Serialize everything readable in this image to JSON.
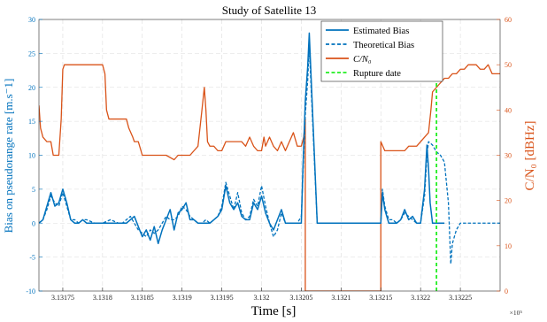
{
  "chart_data": {
    "type": "line",
    "title": "Study of Satellite 13",
    "xlabel": "Time [s]",
    "x_exponent_label": "×10⁵",
    "ylabel_left": "Bias on pseudorange rate [m.s⁻1]",
    "ylabel_right": "C/N₀ [dBHz]",
    "xlim": [
      3.13172,
      3.1323
    ],
    "ylim_left": [
      -10,
      30
    ],
    "ylim_right": [
      0,
      60
    ],
    "x_ticks": [
      3.13175,
      3.1318,
      3.13185,
      3.1319,
      3.13195,
      3.132,
      3.13205,
      3.1321,
      3.13215,
      3.1322,
      3.13225
    ],
    "x_tick_labels": [
      "3.13175",
      "3.1318",
      "3.13185",
      "3.1319",
      "3.13195",
      "3.132",
      "3.13205",
      "3.1321",
      "3.13215",
      "3.1322",
      "3.13225"
    ],
    "y_left_ticks": [
      -10,
      -5,
      0,
      5,
      10,
      15,
      20,
      25,
      30
    ],
    "y_left_tick_labels": [
      "-10",
      "-5",
      "0",
      "5",
      "10",
      "15",
      "20",
      "25",
      "30"
    ],
    "y_right_ticks": [
      0,
      10,
      20,
      30,
      40,
      50,
      60
    ],
    "y_right_tick_labels": [
      "0",
      "10",
      "20",
      "30",
      "40",
      "50",
      "60"
    ],
    "grid": true,
    "legend_position": "top-right",
    "colors": {
      "bias": "#0072bd",
      "cn0": "#d95319",
      "rupture": "#22ee22"
    },
    "series": [
      {
        "name": "Estimated Bias",
        "axis": "left",
        "style": "solid",
        "x": [
          3.13172,
          3.131725,
          3.13173,
          3.131735,
          3.13174,
          3.131745,
          3.13175,
          3.131755,
          3.13176,
          3.131765,
          3.13177,
          3.131775,
          3.13178,
          3.13179,
          3.1318,
          3.13181,
          3.13182,
          3.131825,
          3.13183,
          3.131835,
          3.13184,
          3.131845,
          3.13185,
          3.131855,
          3.13186,
          3.131865,
          3.13187,
          3.131875,
          3.13188,
          3.131885,
          3.13189,
          3.131895,
          3.1319,
          3.131905,
          3.13191,
          3.131915,
          3.13192,
          3.131925,
          3.13193,
          3.131935,
          3.13194,
          3.131945,
          3.13195,
          3.131955,
          3.13196,
          3.131965,
          3.13197,
          3.131975,
          3.13198,
          3.131985,
          3.13199,
          3.131995,
          3.132,
          3.132005,
          3.13201,
          3.132015,
          3.13202,
          3.132025,
          3.13203,
          3.132035,
          3.13204,
          3.132045,
          3.13205,
          3.132052,
          3.132055,
          3.132058,
          3.13206,
          3.13207,
          3.13208,
          3.13209,
          3.1321,
          3.13211,
          3.13212,
          3.13213,
          3.13214,
          3.13215,
          3.132152,
          3.132155,
          3.13216,
          3.132165,
          3.13217,
          3.132175,
          3.13218,
          3.132185,
          3.13219,
          3.132195,
          3.1322,
          3.132205,
          3.132208,
          3.13221,
          3.132212,
          3.132215,
          3.13222,
          3.13223
        ],
        "y": [
          0,
          0.5,
          2.5,
          4.5,
          2.5,
          3,
          5,
          3,
          0.5,
          0,
          0,
          0.5,
          0,
          0,
          0,
          0,
          0,
          0,
          0,
          0.5,
          1,
          -0.5,
          -2,
          -1,
          -2.5,
          -0.5,
          -3,
          -1,
          0.5,
          2,
          -1,
          1.5,
          2,
          3,
          0.5,
          0.5,
          0,
          0,
          0,
          0,
          0.5,
          1,
          2,
          5.5,
          3,
          2,
          3,
          1,
          0.5,
          0.5,
          3,
          2,
          4,
          1.5,
          0,
          -1,
          0.5,
          2,
          0,
          0,
          0,
          0,
          0,
          8,
          18,
          23,
          28,
          0,
          0,
          0,
          0,
          0,
          0,
          0,
          0,
          0,
          4.5,
          2,
          0,
          0,
          0,
          0.5,
          2,
          0.5,
          1,
          0,
          0,
          5,
          11.5,
          8,
          3,
          0,
          0,
          0
        ]
      },
      {
        "name": "Theoretical Bias",
        "axis": "left",
        "style": "dashed",
        "x": [
          3.13172,
          3.131725,
          3.13173,
          3.131735,
          3.13174,
          3.131745,
          3.13175,
          3.131755,
          3.13176,
          3.131765,
          3.13177,
          3.131775,
          3.13178,
          3.13179,
          3.1318,
          3.13181,
          3.13182,
          3.131825,
          3.13183,
          3.131835,
          3.13184,
          3.131845,
          3.13185,
          3.131855,
          3.13186,
          3.131865,
          3.13187,
          3.131875,
          3.13188,
          3.131885,
          3.13189,
          3.131895,
          3.1319,
          3.131905,
          3.13191,
          3.131915,
          3.13192,
          3.131925,
          3.13193,
          3.131935,
          3.13194,
          3.131945,
          3.13195,
          3.131955,
          3.13196,
          3.131965,
          3.13197,
          3.131975,
          3.13198,
          3.131985,
          3.13199,
          3.131995,
          3.132,
          3.132005,
          3.13201,
          3.132015,
          3.13202,
          3.132025,
          3.13203,
          3.132035,
          3.13204,
          3.132045,
          3.13205,
          3.132052,
          3.132055,
          3.132058,
          3.13206,
          3.13207,
          3.13208,
          3.13209,
          3.1321,
          3.13211,
          3.13212,
          3.13213,
          3.13214,
          3.13215,
          3.132152,
          3.132155,
          3.13216,
          3.132165,
          3.13217,
          3.132175,
          3.13218,
          3.132185,
          3.13219,
          3.132195,
          3.1322,
          3.132205,
          3.132208,
          3.13221,
          3.132215,
          3.13222,
          3.132225,
          3.13223,
          3.132235,
          3.132238,
          3.13224,
          3.132245,
          3.13225,
          3.13226,
          3.13227,
          3.13228,
          3.13229,
          3.1323
        ],
        "y": [
          0,
          0.5,
          2,
          4,
          3,
          2.5,
          4.5,
          2.5,
          0.5,
          0.5,
          0,
          0.5,
          0.5,
          0,
          0,
          0.5,
          0,
          0,
          0.5,
          1,
          0,
          -1,
          -1.5,
          -2,
          -1,
          -1.5,
          -1,
          0,
          1,
          0.5,
          0.5,
          1,
          2.5,
          2,
          1,
          0.5,
          0,
          0,
          0.5,
          0,
          0.5,
          1,
          2.5,
          6,
          4,
          2,
          4.5,
          1.5,
          0.5,
          1,
          3.5,
          2.5,
          5.5,
          2.5,
          0,
          -2,
          -1,
          1.5,
          0,
          0,
          0,
          0,
          1,
          7,
          16,
          21,
          26,
          0,
          0,
          0,
          0,
          0,
          0,
          0,
          0,
          0,
          5,
          2.5,
          0.5,
          0.5,
          0,
          0.5,
          1.5,
          1,
          0.5,
          0,
          0,
          4,
          10,
          12,
          11.5,
          10.5,
          10,
          9,
          3,
          -6,
          -3,
          -1,
          0,
          0,
          0,
          0,
          0,
          0
        ]
      },
      {
        "name": "C/N₀",
        "axis": "right",
        "style": "solid",
        "x": [
          3.13172,
          3.131722,
          3.131725,
          3.13173,
          3.131735,
          3.131738,
          3.13174,
          3.131745,
          3.131748,
          3.13175,
          3.131752,
          3.13176,
          3.13177,
          3.13178,
          3.13179,
          3.1318,
          3.131803,
          3.131805,
          3.131808,
          3.13181,
          3.13182,
          3.13183,
          3.131833,
          3.131838,
          3.13184,
          3.131845,
          3.13185,
          3.131855,
          3.13186,
          3.13187,
          3.13188,
          3.13189,
          3.131895,
          3.1319,
          3.131905,
          3.13191,
          3.131915,
          3.13192,
          3.131925,
          3.131928,
          3.13193,
          3.131932,
          3.131935,
          3.13194,
          3.131945,
          3.13195,
          3.131955,
          3.13196,
          3.131965,
          3.13197,
          3.131975,
          3.13198,
          3.131985,
          3.13199,
          3.131995,
          3.132,
          3.132003,
          3.132005,
          3.13201,
          3.132015,
          3.13202,
          3.132025,
          3.13203,
          3.132035,
          3.13204,
          3.132045,
          3.13205,
          3.132053,
          3.132055,
          3.132055,
          3.13206,
          3.13207,
          3.13208,
          3.13209,
          3.1321,
          3.13211,
          3.13212,
          3.13213,
          3.13214,
          3.13215,
          3.13215,
          3.132155,
          3.13216,
          3.132165,
          3.13217,
          3.132175,
          3.13218,
          3.132185,
          3.13219,
          3.132195,
          3.1322,
          3.132205,
          3.13221,
          3.132213,
          3.132215,
          3.13222,
          3.132225,
          3.13223,
          3.132235,
          3.13224,
          3.132245,
          3.13225,
          3.132255,
          3.13226,
          3.132265,
          3.13227,
          3.132275,
          3.13228,
          3.132285,
          3.13229,
          3.1323
        ],
        "y": [
          41,
          36,
          34,
          33,
          33,
          30,
          30,
          30,
          38,
          49,
          50,
          50,
          50,
          50,
          50,
          50,
          48,
          40,
          38,
          38,
          38,
          38,
          36,
          34,
          33,
          33,
          30,
          30,
          30,
          30,
          30,
          29,
          30,
          30,
          30,
          30,
          31,
          32,
          40,
          45,
          40,
          33,
          32,
          32,
          31,
          31,
          33,
          33,
          33,
          33,
          33,
          32,
          34,
          32,
          31,
          31,
          34,
          32,
          34,
          32,
          31,
          33,
          31,
          33,
          35,
          32,
          32,
          34,
          38,
          0,
          0,
          0,
          0,
          0,
          0,
          0,
          0,
          0,
          0,
          0,
          33,
          31,
          31,
          31,
          31,
          31,
          31,
          32,
          32,
          32,
          33,
          34,
          35,
          40,
          44,
          45,
          46,
          47,
          47,
          48,
          48,
          49,
          49,
          50,
          50,
          50,
          49,
          49,
          50,
          48,
          48
        ]
      },
      {
        "name": "Rupture date",
        "axis": "left",
        "style": "dashed",
        "x": [
          3.13222,
          3.13222
        ],
        "y": [
          -10,
          30
        ]
      }
    ]
  }
}
